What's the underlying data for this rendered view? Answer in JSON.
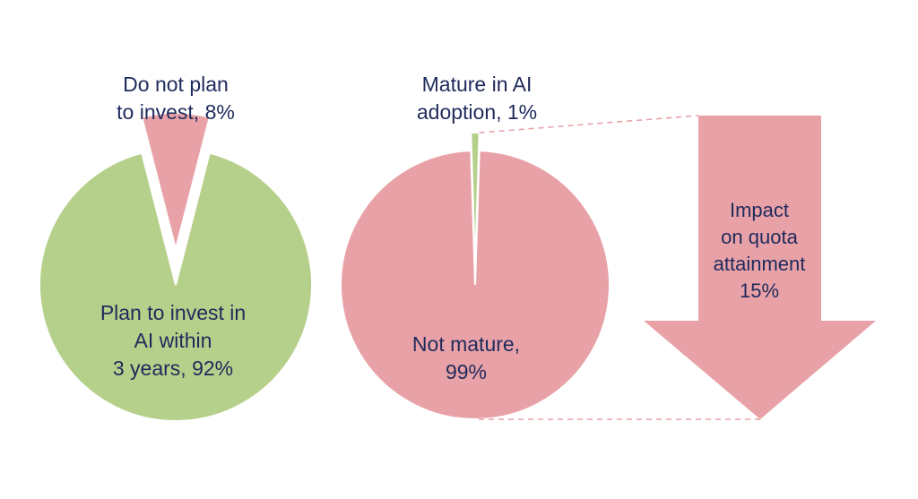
{
  "colors": {
    "green": "#b5d08a",
    "pink": "#e8a2a7",
    "text": "#1f2a5c",
    "connector": "#e8a2a7",
    "background": "#ffffff"
  },
  "chart_data": [
    {
      "type": "pie",
      "title": "",
      "slices": [
        {
          "label": "Plan to invest in AI within 3 years, 92%",
          "value": 92,
          "color": "#b5d08a",
          "exploded": false,
          "label_lines": [
            "Plan to invest in",
            "AI within",
            "3 years, 92%"
          ]
        },
        {
          "label": "Do not plan to invest, 8%",
          "value": 8,
          "color": "#e8a2a7",
          "exploded": true,
          "label_lines": [
            "Do not plan",
            "to invest, 8%"
          ]
        }
      ]
    },
    {
      "type": "pie",
      "title": "",
      "slices": [
        {
          "label": "Not mature, 99%",
          "value": 99,
          "color": "#e8a2a7",
          "exploded": false,
          "label_lines": [
            "Not mature,",
            "99%"
          ]
        },
        {
          "label": "Mature in AI adoption, 1%",
          "value": 1,
          "color": "#b5d08a",
          "exploded": true,
          "label_lines": [
            "Mature in AI",
            "adoption, 1%"
          ]
        }
      ]
    }
  ],
  "arrow": {
    "icon": "down-arrow-icon",
    "label_lines": [
      "Impact",
      "on quota",
      "attainment",
      "15%"
    ],
    "value": 15,
    "color": "#e8a2a7"
  }
}
